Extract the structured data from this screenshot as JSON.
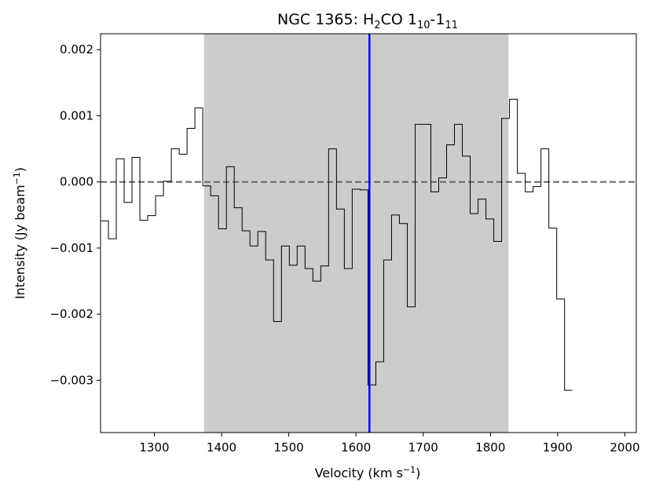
{
  "chart_data": {
    "type": "line",
    "title": {
      "prefix": "NGC 1365: H",
      "sub1": "2",
      "mid": "CO 1",
      "sub2": "10",
      "dash": "-1",
      "sub3": "11"
    },
    "xlabel": {
      "main": "Velocity (km s",
      "sup": "−1",
      "close": ")"
    },
    "ylabel": {
      "main": "Intensity (Jy beam",
      "sup": "−1",
      "close": ")"
    },
    "xlim": [
      1220,
      2017
    ],
    "ylim": [
      -0.00379,
      0.00224
    ],
    "xticks": [
      1300,
      1400,
      1500,
      1600,
      1700,
      1800,
      1900,
      2000
    ],
    "yticks": [
      -0.003,
      -0.002,
      -0.001,
      0.0,
      0.001,
      0.002
    ],
    "xtick_labels": [
      "1300",
      "1400",
      "1500",
      "1600",
      "1700",
      "1800",
      "1900",
      "2000"
    ],
    "ytick_labels": [
      "−0.003",
      "−0.002",
      "−0.001",
      "0.000",
      "0.001",
      "0.002"
    ],
    "step_start": 1220,
    "step_width": 11.7,
    "series": [
      {
        "values": [
          -0.00059,
          -0.00086,
          0.00035,
          -0.00031,
          0.00037,
          -0.00058,
          -0.00051,
          -0.00021,
          1e-05,
          0.0005,
          0.00042,
          0.00081,
          0.00112,
          -6e-05,
          -0.00021,
          -0.00071,
          0.00023,
          -0.00039,
          -0.00074,
          -0.00097,
          -0.00075,
          -0.00118,
          -0.00211,
          -0.00097,
          -0.00126,
          -0.00097,
          -0.00131,
          -0.0015,
          -0.00127,
          0.0005,
          -0.00041,
          -0.00131,
          -0.00011,
          -0.00012,
          -0.00307,
          -0.00272,
          -0.00118,
          -0.0005,
          -0.00063,
          -0.00189,
          0.00087,
          0.00087,
          -0.00015,
          6e-05,
          0.00056,
          0.00087,
          0.00039,
          -0.00048,
          -0.00026,
          -0.00056,
          -0.0009,
          0.00096,
          0.00125,
          0.00013,
          -0.00015,
          -7e-05,
          0.0005,
          -0.0007,
          -0.00177,
          -0.00315
        ]
      }
    ],
    "shaded_region": [
      1374,
      1827
    ],
    "vline_x": 1620,
    "hline_y": 0.0,
    "colors": {
      "shade": "#cccccc",
      "vline": "#0000ff",
      "hline": "#666666",
      "step": "#000000"
    }
  }
}
